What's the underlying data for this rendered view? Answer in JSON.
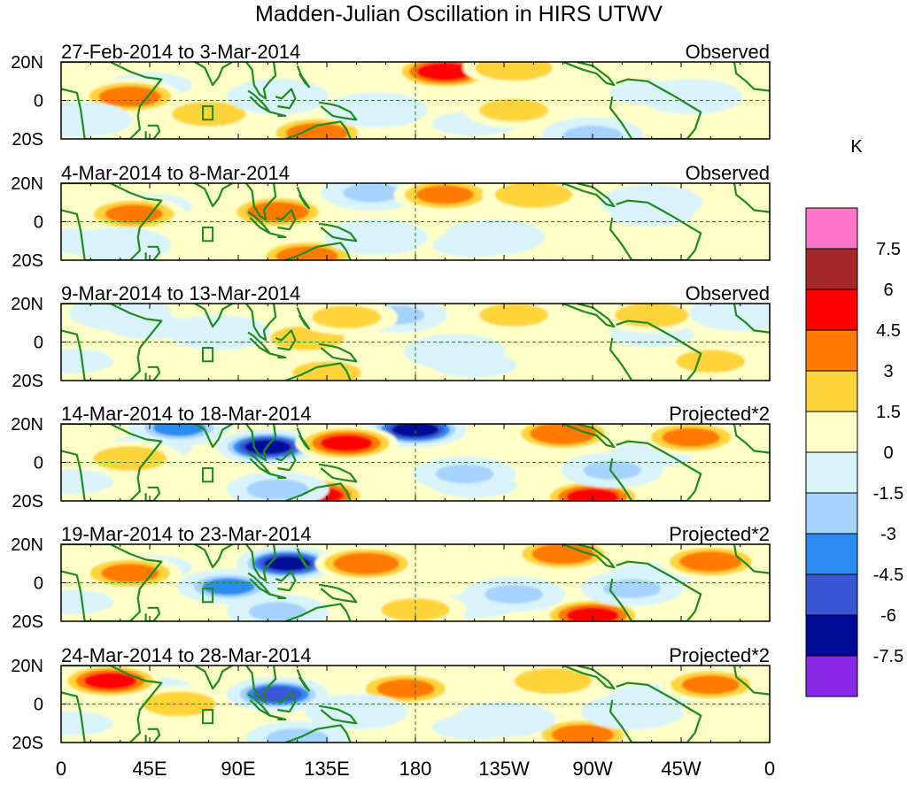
{
  "chart_data": {
    "type": "heatmap",
    "title": "Madden-Julian Oscillation in HIRS UTWV",
    "units": "K",
    "x_ticks": [
      "0",
      "45E",
      "90E",
      "135E",
      "180",
      "135W",
      "90W",
      "45W",
      "0"
    ],
    "x_tick_lon": [
      0,
      45,
      90,
      135,
      180,
      225,
      270,
      315,
      360
    ],
    "y_ticks": [
      "20N",
      "0",
      "20S"
    ],
    "y_tick_lat": [
      20,
      0,
      -20
    ],
    "xlim": [
      0,
      360
    ],
    "ylim": [
      -20,
      20
    ],
    "legend": {
      "levels": [
        "7.5",
        "6",
        "4.5",
        "3",
        "1.5",
        "0",
        "-1.5",
        "-3",
        "-4.5",
        "-6",
        "-7.5"
      ],
      "colors": [
        "#ff77c8",
        "#a42a2a",
        "#ff0000",
        "#ff7a00",
        "#ffd43a",
        "#ffffc8",
        "#d8f4fa",
        "#a6d2ff",
        "#2a8cf0",
        "#3a56d6",
        "#000a96",
        "#8a2ae8"
      ],
      "placement": "right"
    },
    "panels": [
      {
        "date_range": "27-Feb-2014 to 3-Mar-2014",
        "label": "Observed",
        "anomalies": [
          {
            "lon": 35,
            "lat": 2,
            "value": 3.5
          },
          {
            "lon": 195,
            "lat": 15,
            "value": 5
          },
          {
            "lon": 230,
            "lat": 17,
            "value": 2.5
          },
          {
            "lon": 130,
            "lat": -17,
            "value": 3.5
          },
          {
            "lon": 75,
            "lat": -7,
            "value": 2
          },
          {
            "lon": 110,
            "lat": 2,
            "value": -1.5
          },
          {
            "lon": 270,
            "lat": -18,
            "value": -3
          },
          {
            "lon": 160,
            "lat": -5,
            "value": -1.5
          },
          {
            "lon": 230,
            "lat": -5,
            "value": 1.5
          },
          {
            "lon": 320,
            "lat": 2,
            "value": -1.5
          },
          {
            "lon": 10,
            "lat": -10,
            "value": -1.5
          }
        ]
      },
      {
        "date_range": "4-Mar-2014 to 8-Mar-2014",
        "label": "Observed",
        "anomalies": [
          {
            "lon": 37,
            "lat": 4,
            "value": 3
          },
          {
            "lon": 110,
            "lat": 5,
            "value": 3.5
          },
          {
            "lon": 158,
            "lat": 15,
            "value": -3
          },
          {
            "lon": 195,
            "lat": 14,
            "value": 3
          },
          {
            "lon": 240,
            "lat": 14,
            "value": 2.5
          },
          {
            "lon": 125,
            "lat": -18,
            "value": 3.5
          },
          {
            "lon": 30,
            "lat": -12,
            "value": -1.5
          },
          {
            "lon": 160,
            "lat": -8,
            "value": -1.5
          },
          {
            "lon": 220,
            "lat": -8,
            "value": -1.5
          },
          {
            "lon": 300,
            "lat": 10,
            "value": -1.5
          }
        ]
      },
      {
        "date_range": "9-Mar-2014 to 13-Mar-2014",
        "label": "Observed",
        "anomalies": [
          {
            "lon": 125,
            "lat": 2,
            "value": 2
          },
          {
            "lon": 170,
            "lat": 14,
            "value": -3
          },
          {
            "lon": 145,
            "lat": 13,
            "value": 1.5
          },
          {
            "lon": 230,
            "lat": 14,
            "value": 1.5
          },
          {
            "lon": 300,
            "lat": 14,
            "value": 2
          },
          {
            "lon": 135,
            "lat": -16,
            "value": 1.5
          },
          {
            "lon": 30,
            "lat": 15,
            "value": -1.5
          },
          {
            "lon": 80,
            "lat": 5,
            "value": -1.5
          },
          {
            "lon": 200,
            "lat": -5,
            "value": -1.5
          },
          {
            "lon": 330,
            "lat": -10,
            "value": 1.5
          },
          {
            "lon": 345,
            "lat": 15,
            "value": -1.5
          }
        ]
      },
      {
        "date_range": "14-Mar-2014 to 18-Mar-2014",
        "label": "Projected*2",
        "anomalies": [
          {
            "lon": 105,
            "lat": 8,
            "value": -7.5
          },
          {
            "lon": 60,
            "lat": 18,
            "value": -4.5
          },
          {
            "lon": 180,
            "lat": 17,
            "value": -7.5
          },
          {
            "lon": 145,
            "lat": 10,
            "value": 4.5
          },
          {
            "lon": 255,
            "lat": 15,
            "value": 4
          },
          {
            "lon": 320,
            "lat": 13,
            "value": 3
          },
          {
            "lon": 130,
            "lat": -17,
            "value": 4.5
          },
          {
            "lon": 270,
            "lat": -18,
            "value": 4.5
          },
          {
            "lon": 35,
            "lat": 2,
            "value": 2
          },
          {
            "lon": 110,
            "lat": -14,
            "value": -3.5
          },
          {
            "lon": 205,
            "lat": -6,
            "value": -3
          },
          {
            "lon": 280,
            "lat": -4,
            "value": -3
          }
        ]
      },
      {
        "date_range": "19-Mar-2014 to 23-Mar-2014",
        "label": "Projected*2",
        "anomalies": [
          {
            "lon": 115,
            "lat": 10,
            "value": -7.5
          },
          {
            "lon": 85,
            "lat": -2,
            "value": -4.5
          },
          {
            "lon": 155,
            "lat": 10,
            "value": 4
          },
          {
            "lon": 255,
            "lat": 15,
            "value": 3.5
          },
          {
            "lon": 330,
            "lat": 11,
            "value": 3.5
          },
          {
            "lon": 35,
            "lat": 5,
            "value": 3
          },
          {
            "lon": 270,
            "lat": -17,
            "value": 4.5
          },
          {
            "lon": 110,
            "lat": -15,
            "value": -3
          },
          {
            "lon": 230,
            "lat": -6,
            "value": -3
          },
          {
            "lon": 290,
            "lat": -3,
            "value": -3
          },
          {
            "lon": 180,
            "lat": -14,
            "value": 1.5
          }
        ]
      },
      {
        "date_range": "24-Mar-2014 to 28-Mar-2014",
        "label": "Projected*2",
        "anomalies": [
          {
            "lon": 110,
            "lat": 5,
            "value": -6
          },
          {
            "lon": 25,
            "lat": 12,
            "value": 4.5
          },
          {
            "lon": 175,
            "lat": 8,
            "value": 3
          },
          {
            "lon": 250,
            "lat": 12,
            "value": 2.5
          },
          {
            "lon": 330,
            "lat": 10,
            "value": 3
          },
          {
            "lon": 60,
            "lat": 0,
            "value": 2
          },
          {
            "lon": 265,
            "lat": -16,
            "value": 3.5
          },
          {
            "lon": 120,
            "lat": -18,
            "value": -3.5
          },
          {
            "lon": 225,
            "lat": -8,
            "value": -2.5
          },
          {
            "lon": 290,
            "lat": -4,
            "value": -2
          },
          {
            "lon": 150,
            "lat": -4,
            "value": -1.5
          }
        ]
      }
    ]
  }
}
